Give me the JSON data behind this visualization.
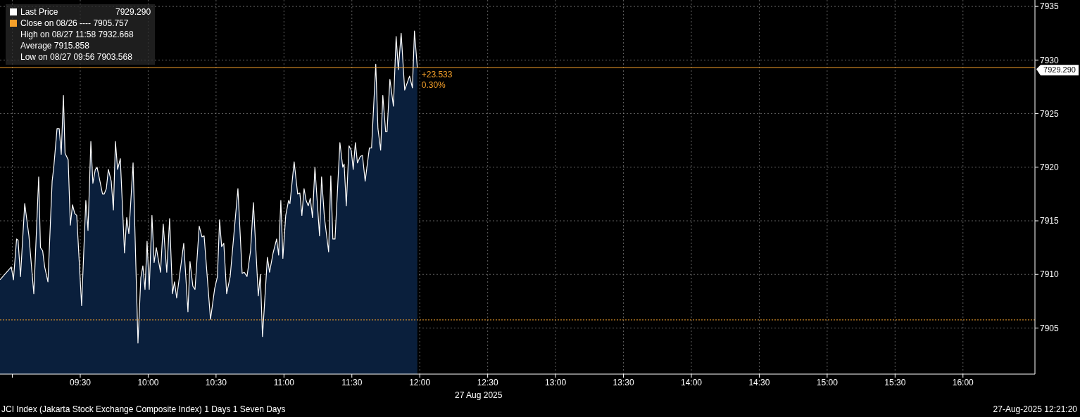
{
  "chart_data": {
    "type": "area",
    "x": [
      8.909,
      8.992,
      9.008,
      9.031,
      9.042,
      9.06,
      9.091,
      9.122,
      9.158,
      9.194,
      9.207,
      9.223,
      9.238,
      9.262,
      9.293,
      9.305,
      9.329,
      9.345,
      9.36,
      9.376,
      9.388,
      9.411,
      9.427,
      9.443,
      9.459,
      9.474,
      9.51,
      9.541,
      9.557,
      9.578,
      9.593,
      9.611,
      9.624,
      9.664,
      9.676,
      9.692,
      9.707,
      9.728,
      9.744,
      9.759,
      9.775,
      9.795,
      9.826,
      9.842,
      9.858,
      9.889,
      9.925,
      9.946,
      9.961,
      9.977,
      9.992,
      10.008,
      10.028,
      10.044,
      10.06,
      10.091,
      10.111,
      10.137,
      10.158,
      10.179,
      10.194,
      10.21,
      10.262,
      10.293,
      10.308,
      10.329,
      10.345,
      10.376,
      10.396,
      10.412,
      10.459,
      10.49,
      10.51,
      10.526,
      10.541,
      10.557,
      10.578,
      10.604,
      10.661,
      10.692,
      10.707,
      10.728,
      10.754,
      10.775,
      10.811,
      10.826,
      10.842,
      10.878,
      10.894,
      10.92,
      10.946,
      10.961,
      10.977,
      10.992,
      11.013,
      11.034,
      11.044,
      11.075,
      11.101,
      11.117,
      11.132,
      11.148,
      11.163,
      11.179,
      11.194,
      11.21,
      11.228,
      11.262,
      11.277,
      11.298,
      11.329,
      11.345,
      11.36,
      11.376,
      11.412,
      11.433,
      11.443,
      11.459,
      11.479,
      11.495,
      11.51,
      11.526,
      11.541,
      11.562,
      11.578,
      11.598,
      11.629,
      11.645,
      11.676,
      11.692,
      11.712,
      11.728,
      11.749,
      11.759,
      11.78,
      11.806,
      11.826,
      11.842,
      11.863,
      11.889,
      11.925,
      11.946,
      11.961,
      11.982
    ],
    "series": [
      {
        "name": "Last Price",
        "color": "#ffffff",
        "values": [
          7909.5,
          7910.7,
          7909.5,
          7913.3,
          7913.2,
          7909.8,
          7916.6,
          7913.6,
          7908.2,
          7919.1,
          7912.5,
          7912.2,
          7910.7,
          7909.3,
          7918.7,
          7920.0,
          7923.6,
          7923.6,
          7921.2,
          7926.7,
          7921.3,
          7920.7,
          7914.6,
          7916.5,
          7915.7,
          7915.5,
          7907.1,
          7916.9,
          7914.1,
          7922.4,
          7918.5,
          7919.8,
          7920.0,
          7917.5,
          7917.5,
          7918.0,
          7919.8,
          7918.7,
          7916.0,
          7922.4,
          7919.8,
          7920.8,
          7912.0,
          7915.3,
          7913.8,
          7920.4,
          7903.6,
          7909.7,
          7910.8,
          7908.6,
          7913.1,
          7908.6,
          7915.5,
          7911.1,
          7912.5,
          7910.2,
          7914.7,
          7910.2,
          7915.2,
          7908.2,
          7909.3,
          7907.8,
          7912.9,
          7906.5,
          7911.2,
          7908.9,
          7908.6,
          7914.5,
          7913.5,
          7913.6,
          7905.8,
          7908.7,
          7909.8,
          7915.1,
          7912.6,
          7912.9,
          7908.2,
          7909.8,
          7918.0,
          7910.1,
          7910.2,
          7909.8,
          7912.2,
          7916.7,
          7908.0,
          7910.0,
          7904.2,
          7911.6,
          7910.2,
          7912.0,
          7913.3,
          7911.8,
          7916.9,
          7911.5,
          7915.5,
          7916.9,
          7916.6,
          7920.5,
          7917.5,
          7917.6,
          7915.5,
          7918.0,
          7916.9,
          7916.4,
          7917.1,
          7915.3,
          7920.0,
          7913.6,
          7919.1,
          7915.3,
          7912.1,
          7919.2,
          7913.3,
          7913.3,
          7922.3,
          7920.0,
          7920.3,
          7916.4,
          7922.0,
          7921.6,
          7919.8,
          7922.3,
          7920.4,
          7921.0,
          7921.1,
          7918.7,
          7921.8,
          7921.8,
          7929.6,
          7923.6,
          7921.6,
          7926.7,
          7923.3,
          7923.3,
          7928.2,
          7925.7,
          7932.2,
          7929.1,
          7932.5,
          7927.2,
          7928.5,
          7927.4,
          7932.7,
          7929.29
        ]
      }
    ],
    "xlim": [
      8.909,
      16.53
    ],
    "xticks": [
      {
        "value": 9,
        "label": null
      },
      {
        "value": 9.5,
        "label": "09:30"
      },
      {
        "value": 10,
        "label": "10:00"
      },
      {
        "value": 10.5,
        "label": "10:30"
      },
      {
        "value": 11,
        "label": "11:00"
      },
      {
        "value": 11.5,
        "label": "11:30"
      },
      {
        "value": 12,
        "label": "12:00"
      },
      {
        "value": 12.5,
        "label": "12:30"
      },
      {
        "value": 13,
        "label": "13:00"
      },
      {
        "value": 13.5,
        "label": "13:30"
      },
      {
        "value": 14,
        "label": "14:00"
      },
      {
        "value": 14.5,
        "label": "14:30"
      },
      {
        "value": 15,
        "label": "15:00"
      },
      {
        "value": 15.5,
        "label": "15:30"
      },
      {
        "value": 16,
        "label": "16:00"
      }
    ],
    "ylim": [
      7900.7,
      7935.6
    ],
    "yticks": [
      7905,
      7910,
      7915,
      7920,
      7925,
      7930,
      7935
    ],
    "grid": true,
    "legend": "top left",
    "ref_lines": [
      {
        "axis": "y",
        "value": 7905.757,
        "label": "Close on 08/26 ---- 7905.757",
        "color": "#f5a02a",
        "line_style": "dotted"
      },
      {
        "axis": "y",
        "value": 7929.29,
        "label": "7929.290",
        "color": "#f5a02a",
        "line_style": "solid"
      }
    ],
    "annotations": [
      "High on 08/27 11:58 7932.668",
      "Average 7915.858",
      "Low on 08/27 09:56 7903.568",
      "27 Aug 2025",
      "JCI Index (Jakarta Stock Exchange Composite Index) 1 Days 1 Seven Days",
      "27-Aug-2025 12:21:20",
      {
        "text": "+23.533",
        "x": 11.982,
        "y": 7929.29
      },
      {
        "text": "0.30%",
        "x": 11.982,
        "y": 7929.29
      }
    ]
  }
}
